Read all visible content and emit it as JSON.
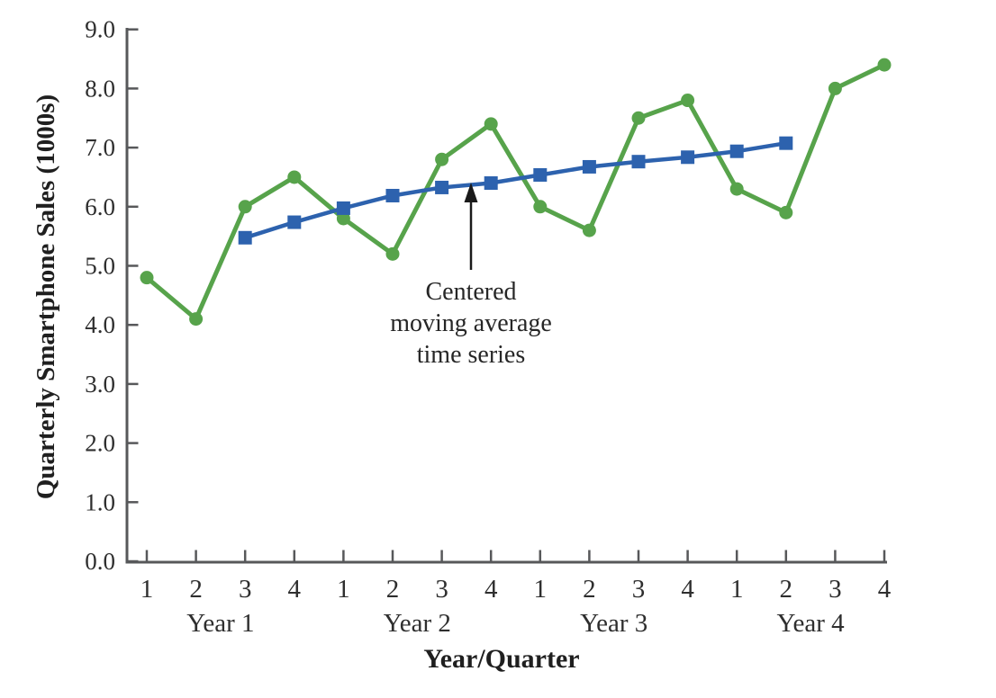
{
  "chart_data": {
    "type": "line",
    "title": "",
    "xlabel": "Year/Quarter",
    "ylabel": "Quarterly Smartphone Sales (1000s)",
    "ylim": [
      0.0,
      9.0
    ],
    "ytick_step": 1.0,
    "ytick_labels": [
      "0.0",
      "1.0",
      "2.0",
      "3.0",
      "4.0",
      "5.0",
      "6.0",
      "7.0",
      "8.0",
      "9.0"
    ],
    "x_quarter_labels": [
      "1",
      "2",
      "3",
      "4",
      "1",
      "2",
      "3",
      "4",
      "1",
      "2",
      "3",
      "4",
      "1",
      "2",
      "3",
      "4"
    ],
    "x_year_labels": [
      "Year 1",
      "Year 2",
      "Year 3",
      "Year 4"
    ],
    "grid": false,
    "legend_position": "none",
    "series": [
      {
        "id": "sales",
        "name": "Quarterly smartphone sales",
        "marker": "circle",
        "color": "#57A34B",
        "start_index": 0,
        "values": [
          4.8,
          4.1,
          6.0,
          6.5,
          5.8,
          5.2,
          6.8,
          7.4,
          6.0,
          5.6,
          7.5,
          7.8,
          6.3,
          5.9,
          8.0,
          8.4
        ]
      },
      {
        "id": "centered-moving-average",
        "name": "Centered moving average time series",
        "marker": "square",
        "color": "#2D62AE",
        "start_index": 2,
        "values": [
          5.475,
          5.7375,
          5.975,
          6.1875,
          6.325,
          6.4,
          6.5375,
          6.675,
          6.7625,
          6.8375,
          6.9375,
          7.075
        ]
      }
    ],
    "annotation": {
      "line1": "Centered",
      "line2": "moving average",
      "line3": "time series",
      "points_to": "centered moving average line"
    },
    "colors": {
      "sales_green": "#57A34B",
      "cma_blue": "#2D62AE",
      "axis_gray": "#57585a",
      "text_dark": "#2e2e2e"
    }
  }
}
